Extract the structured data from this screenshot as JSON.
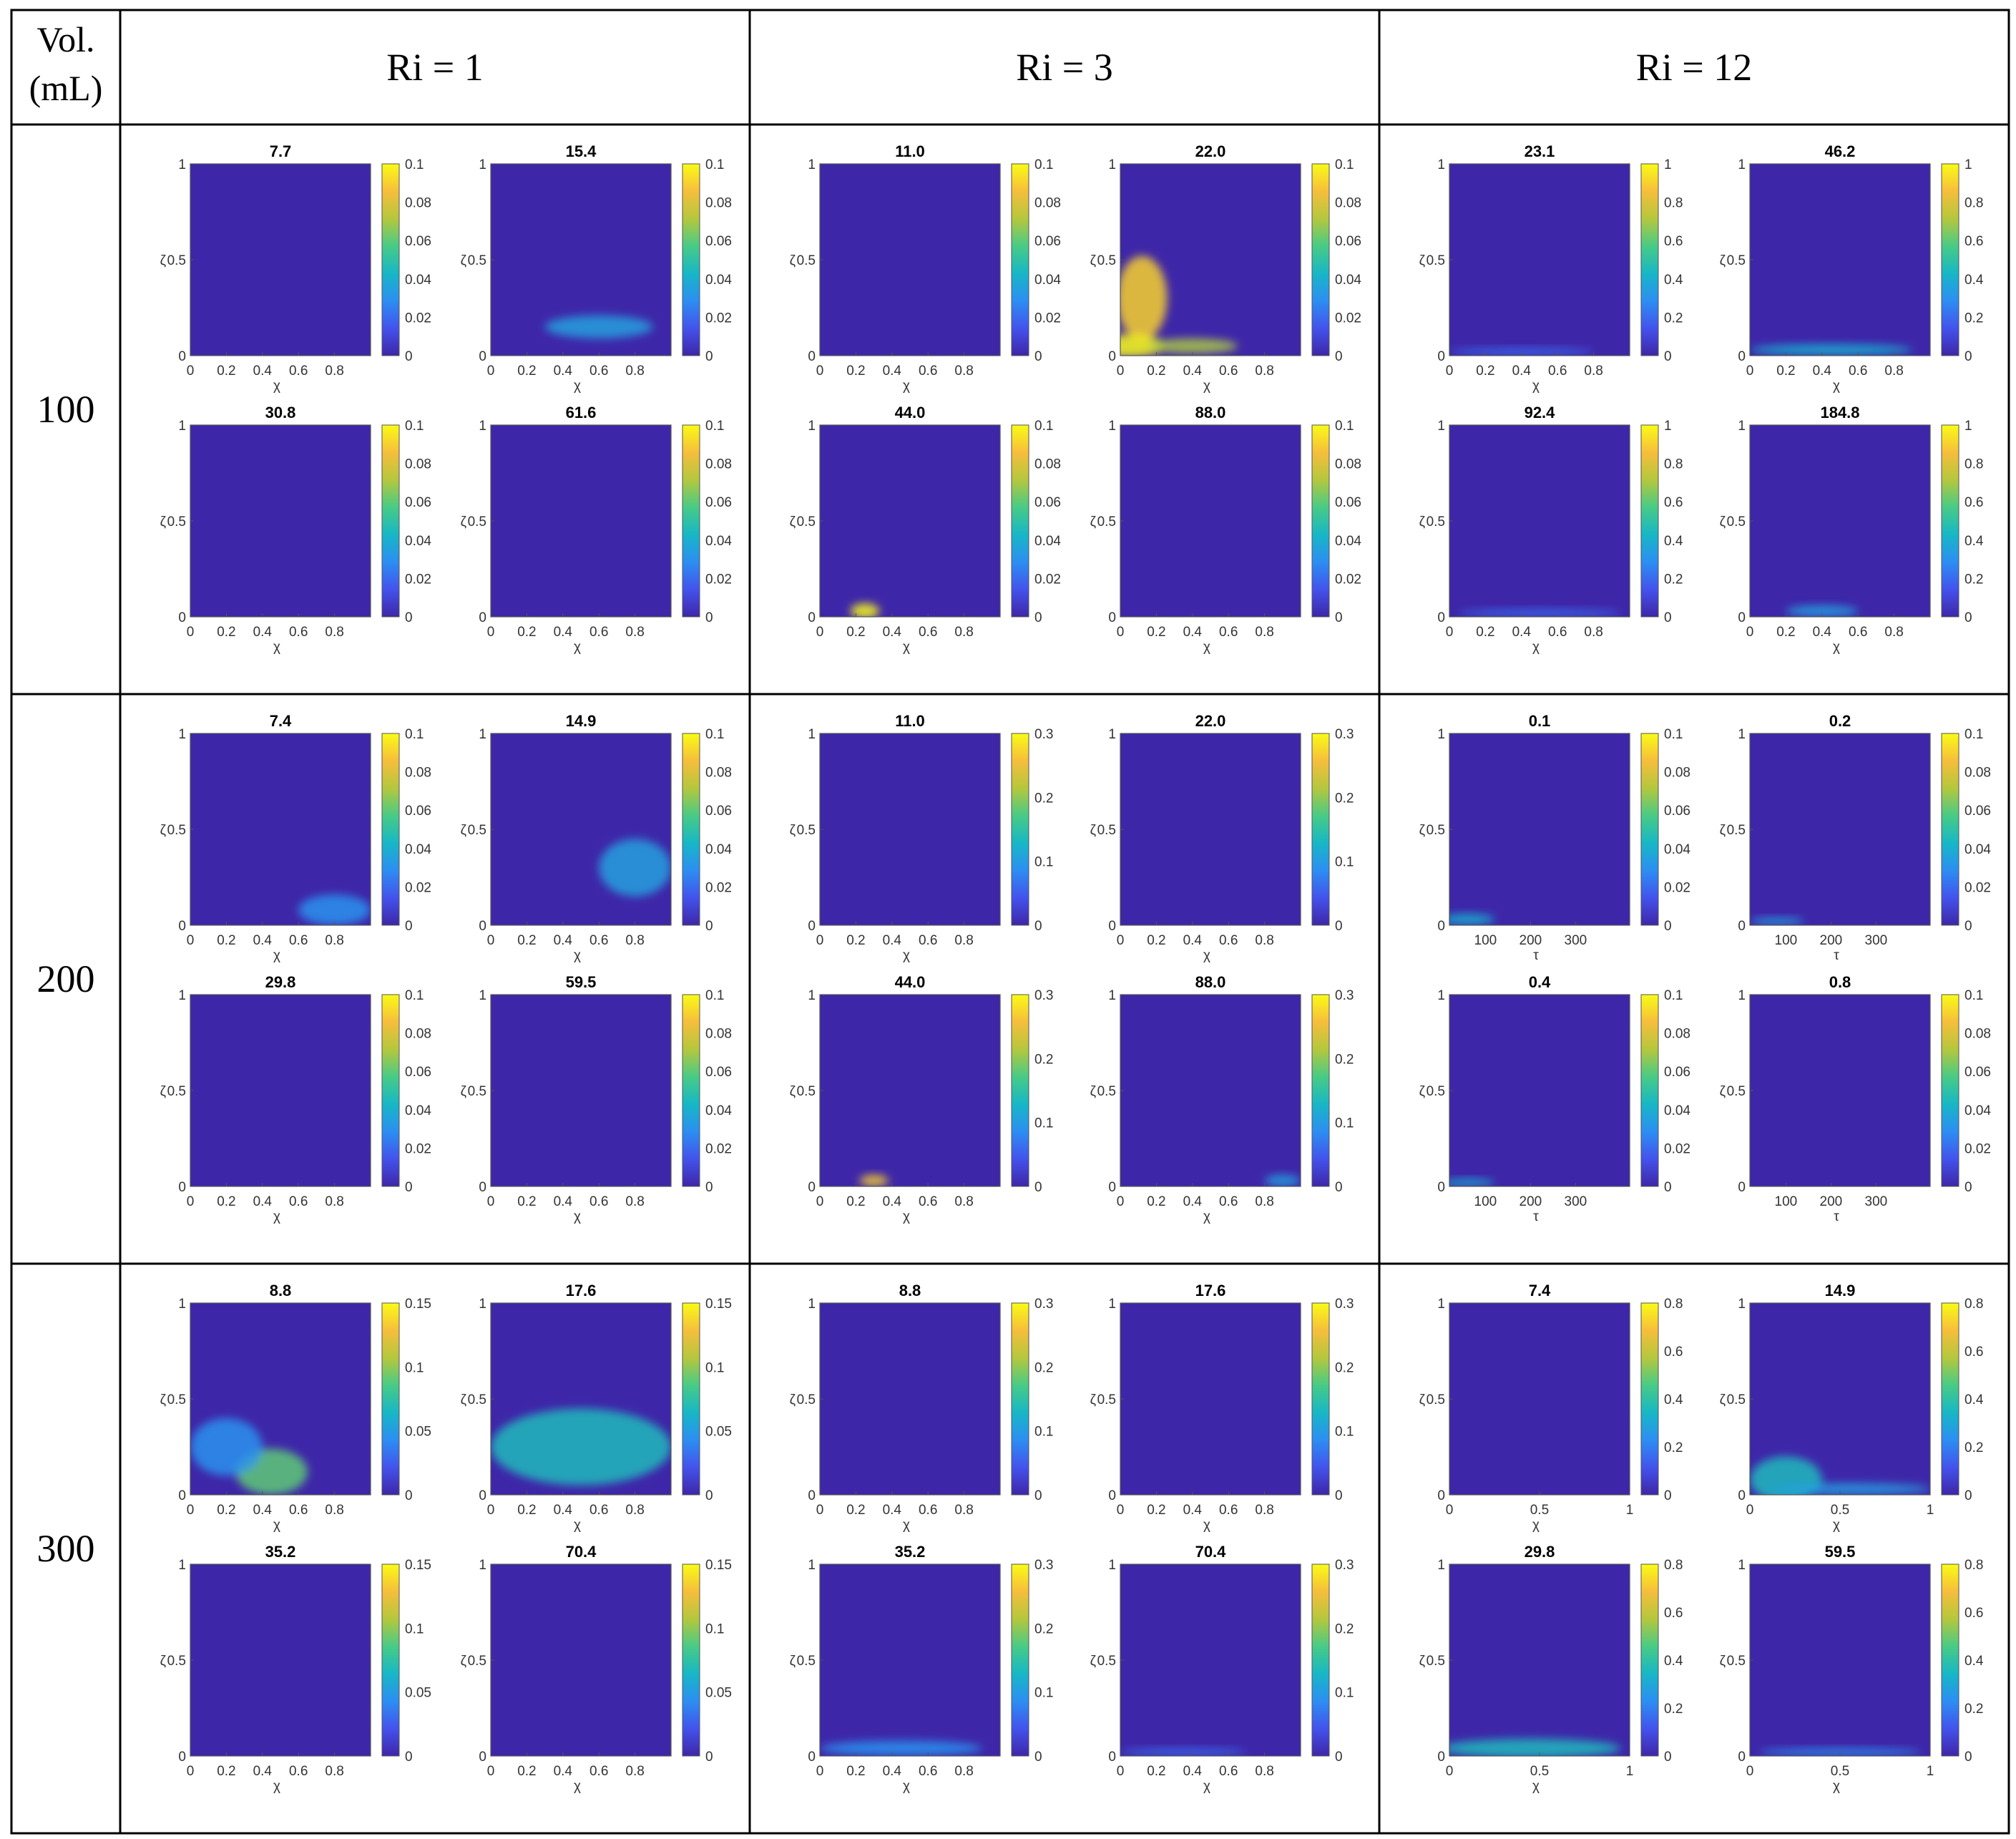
{
  "table": {
    "header": {
      "corner_line1": "Vol.",
      "corner_line2": "(mL)",
      "columns": [
        "Ri = 1",
        "Ri = 3",
        "Ri = 12"
      ]
    },
    "rows": [
      "100",
      "200",
      "300"
    ]
  },
  "colors": {
    "background": "#3e26a8",
    "colormap": [
      "#3e26a8",
      "#4353ec",
      "#2c8ef2",
      "#17b7c6",
      "#48cb86",
      "#b5c73d",
      "#f6be3c",
      "#f9fb15"
    ]
  },
  "chart_data": [
    {
      "row": 0,
      "col": 0,
      "titles": [
        "7.7",
        "15.4",
        "30.8",
        "61.6"
      ],
      "xticks": [
        "0",
        "0.2",
        "0.4",
        "0.6",
        "0.8"
      ],
      "yticks": [
        "0",
        "0.5",
        "1"
      ],
      "cbar": [
        "0.1",
        "0.08",
        "0.06",
        "0.04",
        "0.02",
        "0"
      ],
      "xlabel": "χ",
      "ylabel": "ζ",
      "hot": [
        [],
        [
          [
            0.6,
            0.15,
            0.3,
            0.06,
            0.35
          ]
        ],
        [],
        []
      ]
    },
    {
      "row": 0,
      "col": 1,
      "titles": [
        "11.0",
        "22.0",
        "44.0",
        "88.0"
      ],
      "xticks": [
        "0",
        "0.2",
        "0.4",
        "0.6",
        "0.8"
      ],
      "yticks": [
        "0",
        "0.5",
        "1"
      ],
      "cbar": [
        "0.1",
        "0.08",
        "0.06",
        "0.04",
        "0.02",
        "0"
      ],
      "xlabel": "χ",
      "ylabel": "ζ",
      "hot": [
        [],
        [
          [
            0.12,
            0.3,
            0.14,
            0.22,
            0.9
          ],
          [
            0.05,
            0.05,
            0.2,
            0.06,
            1.0
          ],
          [
            0.4,
            0.05,
            0.25,
            0.04,
            0.7
          ]
        ],
        [
          [
            0.25,
            0.03,
            0.08,
            0.04,
            1.0
          ]
        ],
        []
      ]
    },
    {
      "row": 0,
      "col": 2,
      "titles": [
        "23.1",
        "46.2",
        "92.4",
        "184.8"
      ],
      "xticks": [
        "0",
        "0.2",
        "0.4",
        "0.6",
        "0.8"
      ],
      "yticks": [
        "0",
        "0.5",
        "1"
      ],
      "cbar": [
        "1",
        "0.8",
        "0.6",
        "0.4",
        "0.2",
        "0"
      ],
      "xlabel": "χ",
      "ylabel": "ζ",
      "hot": [
        [
          [
            0.4,
            0.02,
            0.4,
            0.02,
            0.2
          ]
        ],
        [
          [
            0.45,
            0.03,
            0.45,
            0.03,
            0.4
          ]
        ],
        [
          [
            0.5,
            0.02,
            0.45,
            0.02,
            0.2
          ]
        ],
        [
          [
            0.4,
            0.03,
            0.2,
            0.03,
            0.35
          ]
        ]
      ]
    },
    {
      "row": 1,
      "col": 0,
      "titles": [
        "7.4",
        "14.9",
        "29.8",
        "59.5"
      ],
      "xticks": [
        "0",
        "0.2",
        "0.4",
        "0.6",
        "0.8"
      ],
      "yticks": [
        "0",
        "0.5",
        "1"
      ],
      "cbar": [
        "0.1",
        "0.08",
        "0.06",
        "0.04",
        "0.02",
        "0"
      ],
      "xlabel": "χ",
      "ylabel": "ζ",
      "hot": [
        [
          [
            0.8,
            0.08,
            0.2,
            0.08,
            0.3
          ]
        ],
        [
          [
            0.8,
            0.3,
            0.2,
            0.15,
            0.35
          ]
        ],
        [],
        []
      ]
    },
    {
      "row": 1,
      "col": 1,
      "titles": [
        "11.0",
        "22.0",
        "44.0",
        "88.0"
      ],
      "xticks": [
        "0",
        "0.2",
        "0.4",
        "0.6",
        "0.8"
      ],
      "yticks": [
        "0",
        "0.5",
        "1"
      ],
      "cbar": [
        "0.3",
        "0.2",
        "0.1",
        "0"
      ],
      "xlabel": "χ",
      "ylabel": "ζ",
      "hot": [
        [],
        [],
        [
          [
            0.3,
            0.03,
            0.08,
            0.03,
            0.9
          ]
        ],
        [
          [
            0.9,
            0.03,
            0.1,
            0.03,
            0.35
          ]
        ]
      ]
    },
    {
      "row": 1,
      "col": 2,
      "titles": [
        "0.1",
        "0.2",
        "0.4",
        "0.8"
      ],
      "xticks": [
        "100",
        "200",
        "300"
      ],
      "xtick_frac": [
        0.2,
        0.45,
        0.7
      ],
      "yticks": [
        "0",
        "0.5",
        "1"
      ],
      "cbar": [
        "0.1",
        "0.08",
        "0.06",
        "0.04",
        "0.02",
        "0"
      ],
      "xlabel": "τ",
      "ylabel": "ζ",
      "hot": [
        [
          [
            0.1,
            0.03,
            0.15,
            0.03,
            0.4
          ]
        ],
        [
          [
            0.15,
            0.02,
            0.15,
            0.02,
            0.35
          ]
        ],
        [
          [
            0.1,
            0.02,
            0.15,
            0.02,
            0.4
          ]
        ],
        []
      ]
    },
    {
      "row": 2,
      "col": 0,
      "titles": [
        "8.8",
        "17.6",
        "35.2",
        "70.4"
      ],
      "xticks": [
        "0",
        "0.2",
        "0.4",
        "0.6",
        "0.8"
      ],
      "yticks": [
        "0",
        "0.5",
        "1"
      ],
      "cbar": [
        "0.15",
        "0.1",
        "0.05",
        "0"
      ],
      "xlabel": "χ",
      "ylabel": "ζ",
      "hot": [
        [
          [
            0.45,
            0.12,
            0.2,
            0.12,
            0.6
          ],
          [
            0.2,
            0.25,
            0.2,
            0.15,
            0.3
          ]
        ],
        [
          [
            0.5,
            0.25,
            0.5,
            0.2,
            0.45
          ]
        ],
        [],
        []
      ]
    },
    {
      "row": 2,
      "col": 1,
      "titles": [
        "8.8",
        "17.6",
        "35.2",
        "70.4"
      ],
      "xticks": [
        "0",
        "0.2",
        "0.4",
        "0.6",
        "0.8"
      ],
      "yticks": [
        "0",
        "0.5",
        "1"
      ],
      "cbar": [
        "0.3",
        "0.2",
        "0.1",
        "0"
      ],
      "xlabel": "χ",
      "ylabel": "ζ",
      "hot": [
        [],
        [],
        [
          [
            0.45,
            0.04,
            0.45,
            0.04,
            0.3
          ]
        ],
        [
          [
            0.35,
            0.02,
            0.35,
            0.02,
            0.2
          ]
        ]
      ]
    },
    {
      "row": 2,
      "col": 2,
      "titles": [
        "7.4",
        "14.9",
        "29.8",
        "59.5"
      ],
      "xticks": [
        "0",
        "0.5",
        "1"
      ],
      "yticks": [
        "0",
        "0.5",
        "1"
      ],
      "cbar": [
        "0.8",
        "0.6",
        "0.4",
        "0.2",
        "0"
      ],
      "xlabel": "χ",
      "ylabel": "ζ",
      "hot": [
        [],
        [
          [
            0.2,
            0.08,
            0.2,
            0.12,
            0.45
          ],
          [
            0.55,
            0.03,
            0.45,
            0.03,
            0.35
          ]
        ],
        [
          [
            0.45,
            0.04,
            0.5,
            0.05,
            0.45
          ]
        ],
        [
          [
            0.5,
            0.02,
            0.45,
            0.02,
            0.3
          ]
        ]
      ]
    }
  ]
}
